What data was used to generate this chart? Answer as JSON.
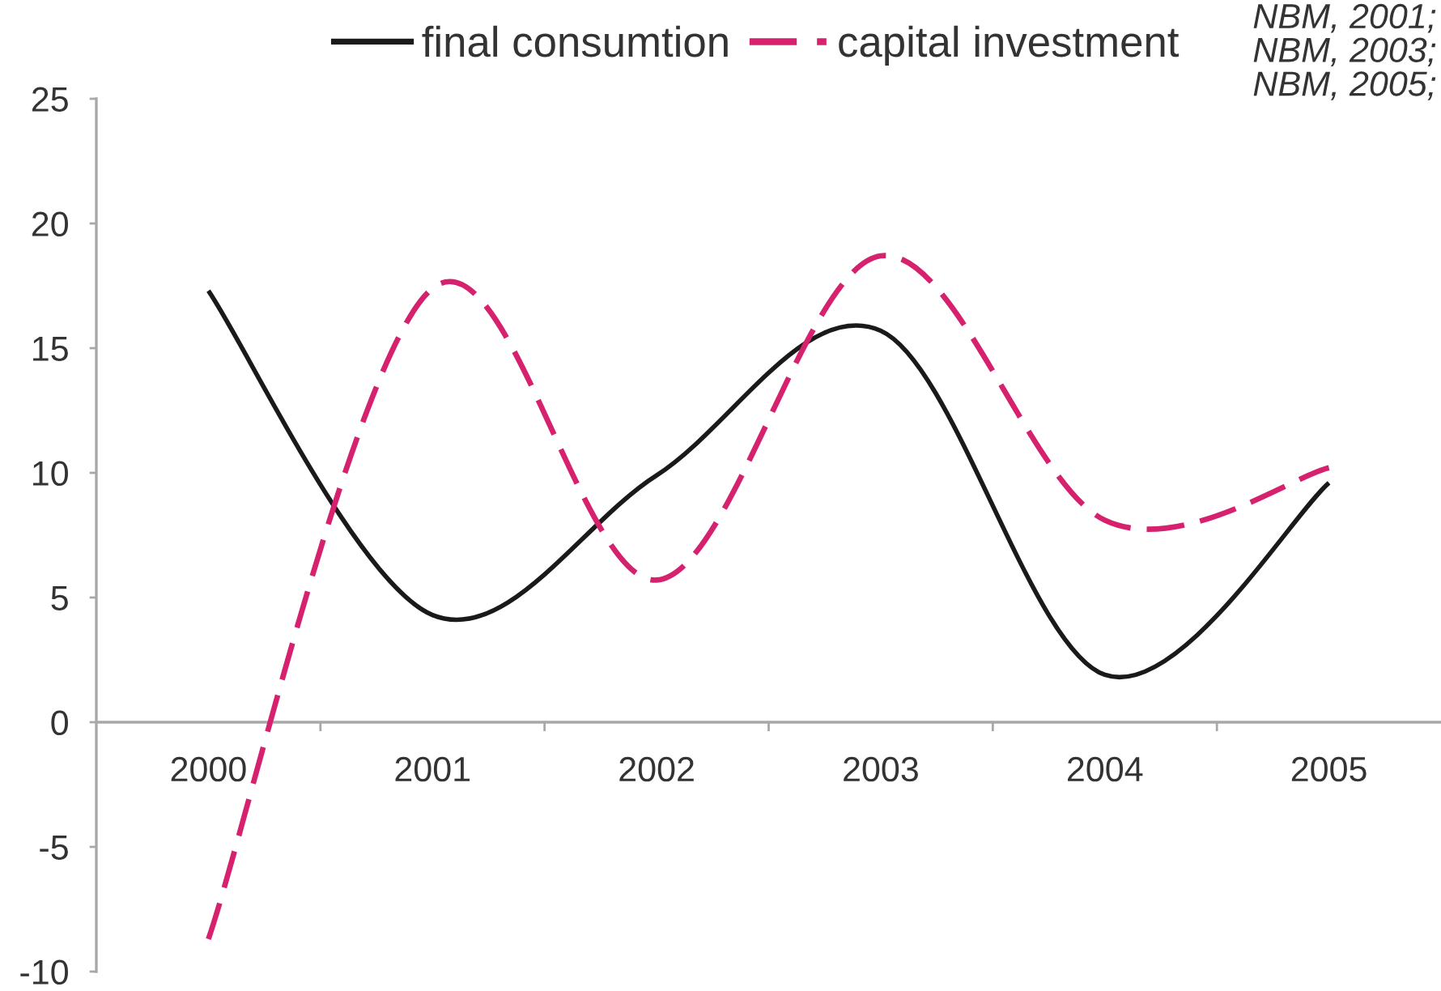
{
  "chart_data": {
    "type": "line",
    "categories": [
      "2000",
      "2001",
      "2002",
      "2003",
      "2004",
      "2005"
    ],
    "series": [
      {
        "name": "final consumtion",
        "color": "#1a1a1a",
        "line_style": "solid",
        "values": [
          17.3,
          4.3,
          9.9,
          15.7,
          1.9,
          9.6
        ]
      },
      {
        "name": "capital investment",
        "color": "#d6216f",
        "line_style": "dashed",
        "values": [
          -8.7,
          17.4,
          5.7,
          18.7,
          8.1,
          10.2
        ]
      }
    ],
    "ylim": [
      -10,
      25
    ],
    "yticks": [
      -10,
      -5,
      0,
      5,
      10,
      15,
      20,
      25
    ],
    "legend": "top",
    "annotations": [
      "NBM, 2001;\nNBM, 2003;\nNBM, 2005;"
    ]
  }
}
